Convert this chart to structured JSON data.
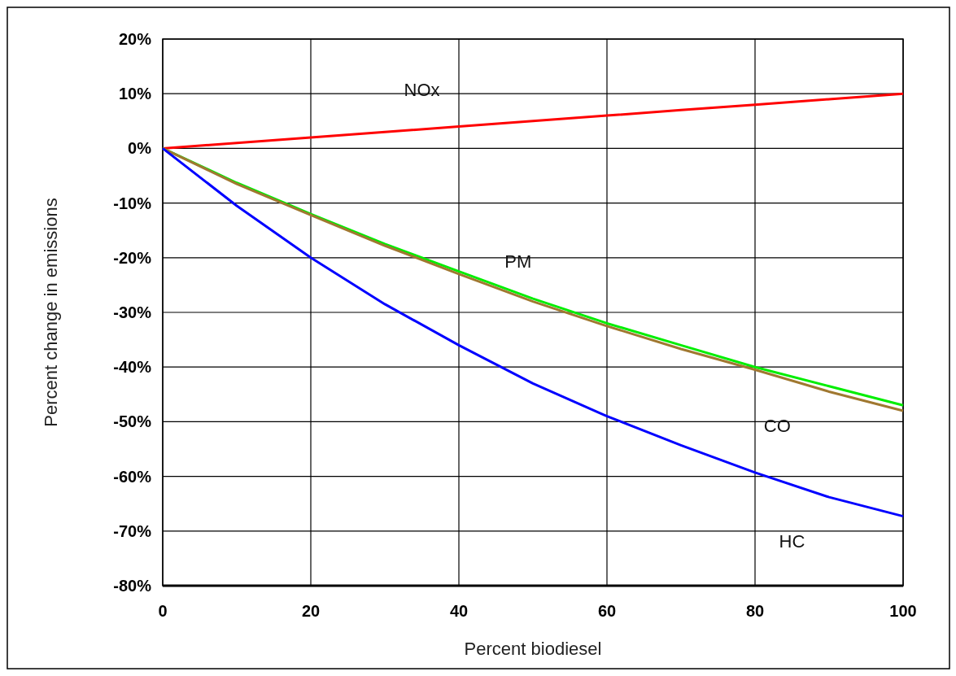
{
  "chart_data": {
    "type": "line",
    "xlabel": "Percent biodiesel",
    "ylabel": "Percent change in emissions",
    "x": [
      0,
      10,
      20,
      30,
      40,
      50,
      60,
      70,
      80,
      90,
      100
    ],
    "series": [
      {
        "name": "NOx",
        "color": "#ff0000",
        "values": [
          0,
          1,
          2,
          3,
          4,
          5,
          6,
          7,
          8,
          9,
          10
        ]
      },
      {
        "name": "PM",
        "color": "#00ee00",
        "values": [
          0,
          -6.3,
          -12,
          -17.5,
          -22.5,
          -27.5,
          -32,
          -36,
          -40,
          -43.5,
          -47
        ]
      },
      {
        "name": "CO",
        "color": "#a07830",
        "values": [
          0,
          -6.5,
          -12.2,
          -17.8,
          -23,
          -28,
          -32.5,
          -36.7,
          -40.5,
          -44.5,
          -48
        ]
      },
      {
        "name": "HC",
        "color": "#0000ff",
        "values": [
          0,
          -10.5,
          -20,
          -28.5,
          -36,
          -43,
          -49,
          -54.3,
          -59.3,
          -63.8,
          -67.3
        ]
      }
    ],
    "xlim": [
      0,
      100
    ],
    "xticks": [
      0,
      20,
      40,
      60,
      80,
      100
    ],
    "ylim": [
      -80,
      20
    ],
    "yticks": [
      {
        "value": 20,
        "label": "20%"
      },
      {
        "value": 10,
        "label": "10%"
      },
      {
        "value": 0,
        "label": "0%"
      },
      {
        "value": -10,
        "label": "-10%"
      },
      {
        "value": -20,
        "label": "-20%"
      },
      {
        "value": -30,
        "label": "-30%"
      },
      {
        "value": -40,
        "label": "-40%"
      },
      {
        "value": -50,
        "label": "-50%"
      },
      {
        "value": -60,
        "label": "-60%"
      },
      {
        "value": -70,
        "label": "-70%"
      },
      {
        "value": -80,
        "label": "-80%"
      }
    ],
    "grid": true,
    "marker": "none",
    "line_style": "solid"
  }
}
